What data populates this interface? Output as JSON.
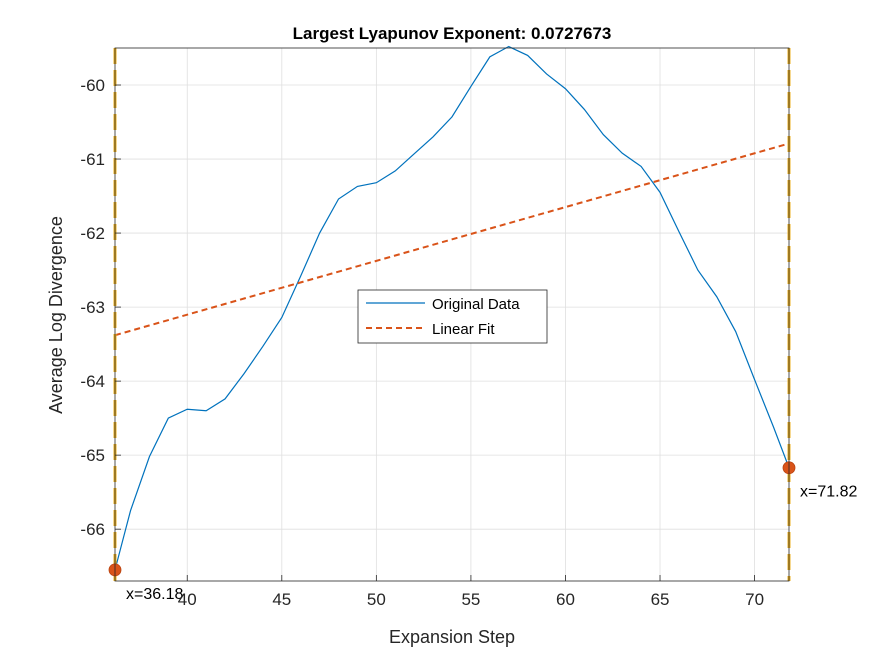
{
  "chart_data": {
    "type": "line",
    "title": "Largest Lyapunov Exponent: 0.0727673",
    "xlabel": "Expansion Step",
    "ylabel": "Average Log Divergence",
    "xlim": [
      36.18,
      71.82
    ],
    "ylim": [
      -66.7,
      -59.5
    ],
    "xticks": [
      40,
      45,
      50,
      55,
      60,
      65,
      70
    ],
    "yticks": [
      -66,
      -65,
      -64,
      -63,
      -62,
      -61,
      -60
    ],
    "grid": true,
    "legend_position": "center",
    "series": [
      {
        "name": "Original Data",
        "style": "solid",
        "color": "#0072BD",
        "x": [
          36.18,
          37,
          38,
          39,
          40,
          41,
          42,
          43,
          44,
          45,
          46,
          47,
          48,
          49,
          50,
          51,
          52,
          53,
          54,
          55,
          56,
          57,
          58,
          59,
          60,
          61,
          62,
          63,
          64,
          65,
          66,
          67,
          68,
          69,
          70,
          71,
          71.82
        ],
        "y": [
          -66.55,
          -65.75,
          -65.02,
          -64.5,
          -64.38,
          -64.4,
          -64.24,
          -63.9,
          -63.53,
          -63.14,
          -62.58,
          -62.0,
          -61.54,
          -61.37,
          -61.32,
          -61.16,
          -60.93,
          -60.7,
          -60.43,
          -60.02,
          -59.62,
          -59.48,
          -59.6,
          -59.85,
          -60.05,
          -60.33,
          -60.67,
          -60.92,
          -61.1,
          -61.45,
          -61.98,
          -62.5,
          -62.86,
          -63.33,
          -63.98,
          -64.62,
          -65.17
        ]
      },
      {
        "name": "Linear Fit",
        "style": "dashed",
        "color": "#D95319",
        "x": [
          36.18,
          71.82
        ],
        "y": [
          -63.38,
          -60.79
        ]
      }
    ],
    "cursors": [
      {
        "x": 36.18,
        "y": -66.55,
        "label": "x=36.18"
      },
      {
        "x": 71.82,
        "y": -65.17,
        "label": "x=71.82"
      }
    ],
    "cursor_line_color": "#EDB120",
    "cursor_marker_color": "#D95319"
  }
}
